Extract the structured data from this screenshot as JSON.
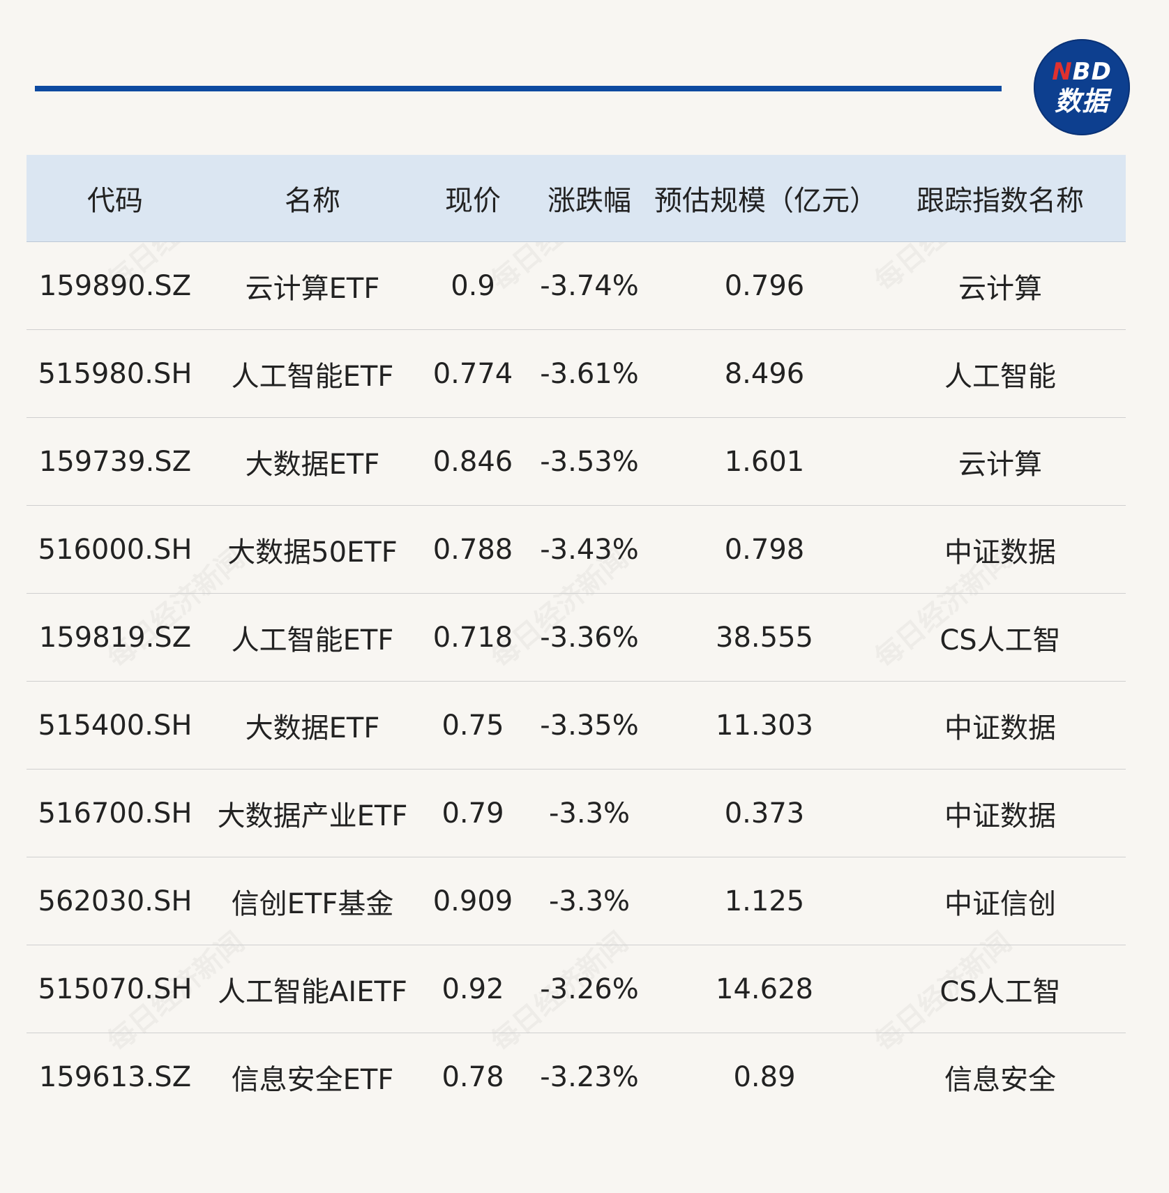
{
  "logo": {
    "line1_n": "N",
    "line1_rest": "BD",
    "line2": "数据"
  },
  "watermark_text": "每日经济新闻",
  "table": {
    "headers": [
      "代码",
      "名称",
      "现价",
      "涨跌幅",
      "预估规模（亿元）",
      "跟踪指数名称"
    ],
    "rows": [
      [
        "159890.SZ",
        "云计算ETF",
        "0.9",
        "-3.74%",
        "0.796",
        "云计算"
      ],
      [
        "515980.SH",
        "人工智能ETF",
        "0.774",
        "-3.61%",
        "8.496",
        "人工智能"
      ],
      [
        "159739.SZ",
        "大数据ETF",
        "0.846",
        "-3.53%",
        "1.601",
        "云计算"
      ],
      [
        "516000.SH",
        "大数据50ETF",
        "0.788",
        "-3.43%",
        "0.798",
        "中证数据"
      ],
      [
        "159819.SZ",
        "人工智能ETF",
        "0.718",
        "-3.36%",
        "38.555",
        "CS人工智"
      ],
      [
        "515400.SH",
        "大数据ETF",
        "0.75",
        "-3.35%",
        "11.303",
        "中证数据"
      ],
      [
        "516700.SH",
        "大数据产业ETF",
        "0.79",
        "-3.3%",
        "0.373",
        "中证数据"
      ],
      [
        "562030.SH",
        "信创ETF基金",
        "0.909",
        "-3.3%",
        "1.125",
        "中证信创"
      ],
      [
        "515070.SH",
        "人工智能AIETF",
        "0.92",
        "-3.26%",
        "14.628",
        "CS人工智"
      ],
      [
        "159613.SZ",
        "信息安全ETF",
        "0.78",
        "-3.23%",
        "0.89",
        "信息安全"
      ]
    ]
  },
  "colors": {
    "accent_rule": "#0d4aa0",
    "header_bg": "#dbe6f2",
    "logo_bg": "#0d3f8f",
    "logo_red": "#e0312f",
    "page_bg": "#f8f6f2"
  }
}
